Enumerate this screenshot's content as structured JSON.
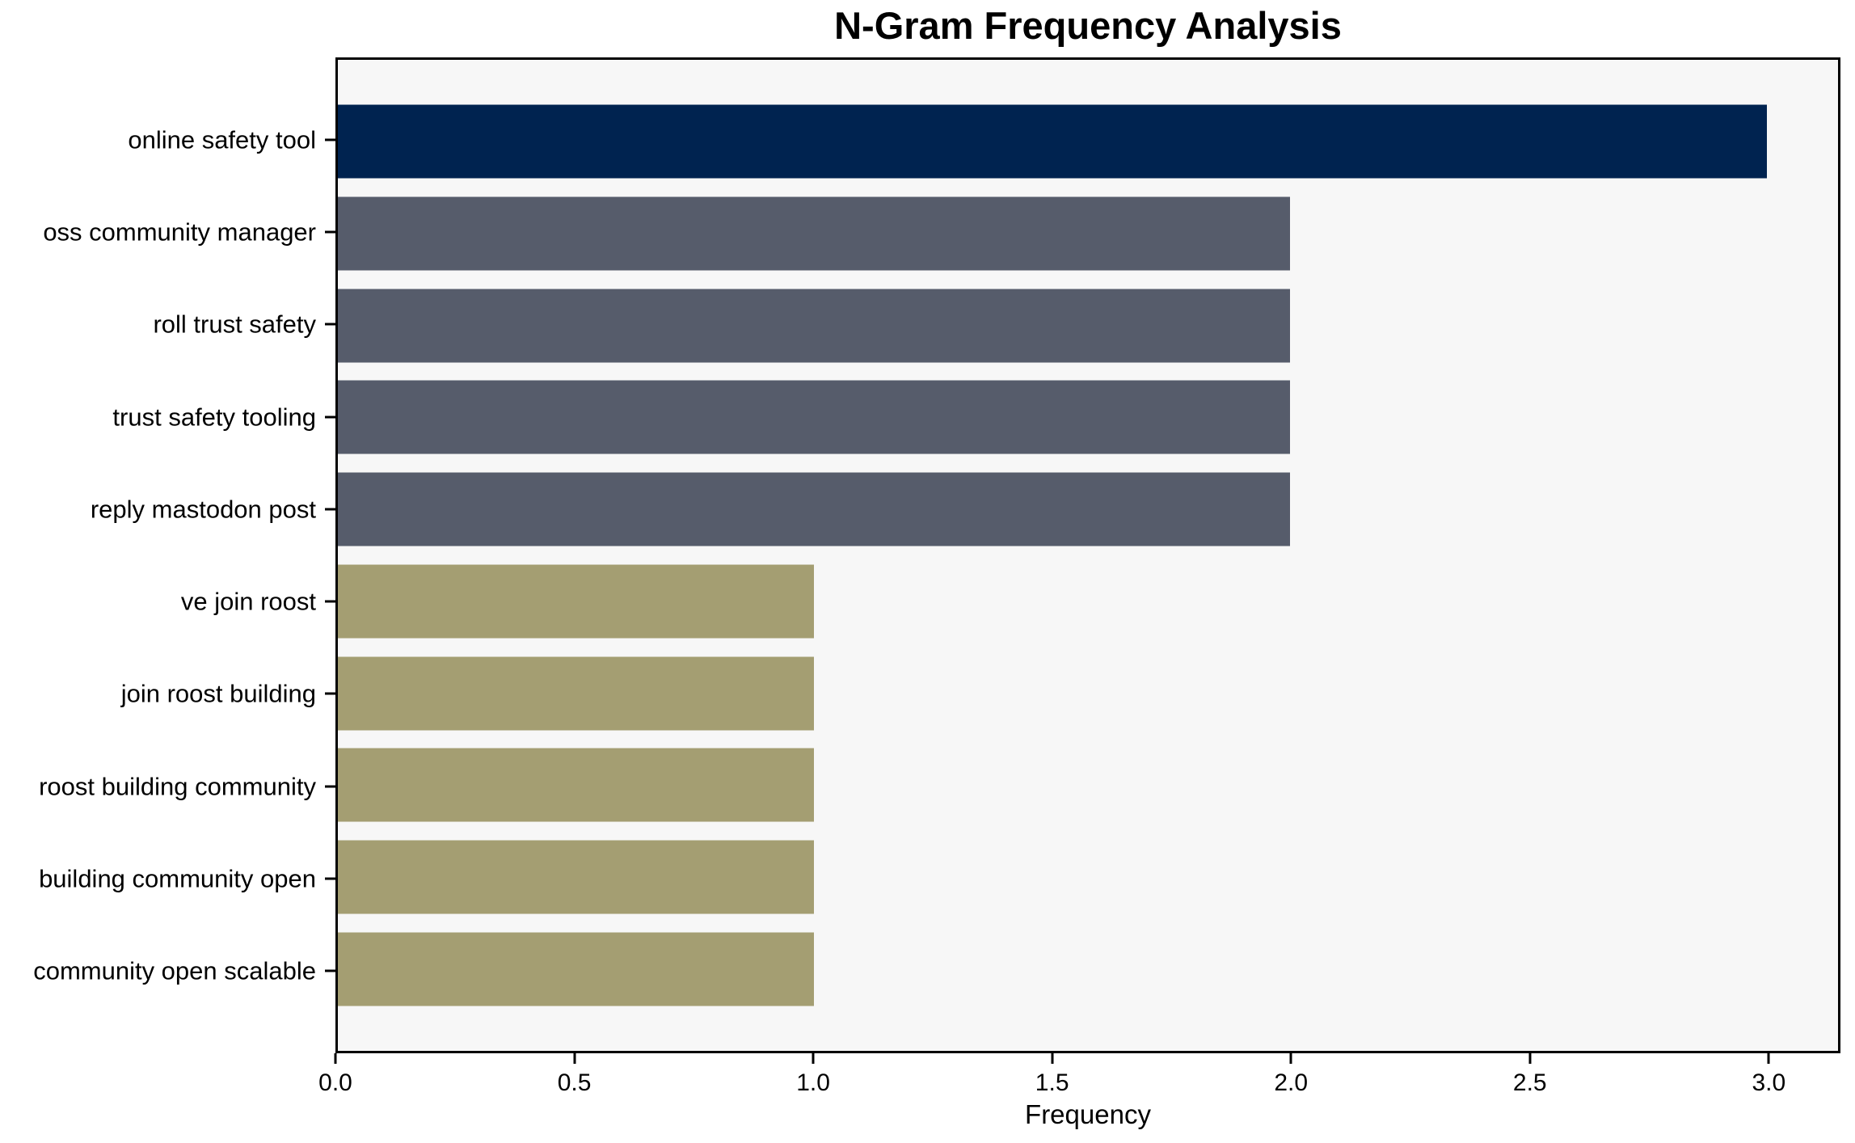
{
  "chart_data": {
    "type": "bar",
    "orientation": "horizontal",
    "title": "N-Gram Frequency Analysis",
    "xlabel": "Frequency",
    "ylabel": "",
    "categories": [
      "online safety tool",
      "oss community manager",
      "roll trust safety",
      "trust safety tooling",
      "reply mastodon post",
      "ve join roost",
      "join roost building",
      "roost building community",
      "building community open",
      "community open scalable"
    ],
    "values": [
      3,
      2,
      2,
      2,
      2,
      1,
      1,
      1,
      1,
      1
    ],
    "bar_colors": [
      "#002350",
      "#565c6b",
      "#565c6b",
      "#565c6b",
      "#565c6b",
      "#a49e72",
      "#a49e72",
      "#a49e72",
      "#a49e72",
      "#a49e72"
    ],
    "xlim": [
      0,
      3.15
    ],
    "xticks": [
      0,
      0.5,
      1,
      1.5,
      2,
      2.5,
      3
    ],
    "xtick_labels": [
      "0.0",
      "0.5",
      "1.0",
      "1.5",
      "2.0",
      "2.5",
      "3.0"
    ],
    "grid": false,
    "legend": "none",
    "plot_background": "#f7f7f7",
    "figure_background": "#ffffff",
    "axis_color": "#000000",
    "palette": {
      "freq_3": "#002350",
      "freq_2": "#565c6b",
      "freq_1": "#a49e72"
    }
  }
}
